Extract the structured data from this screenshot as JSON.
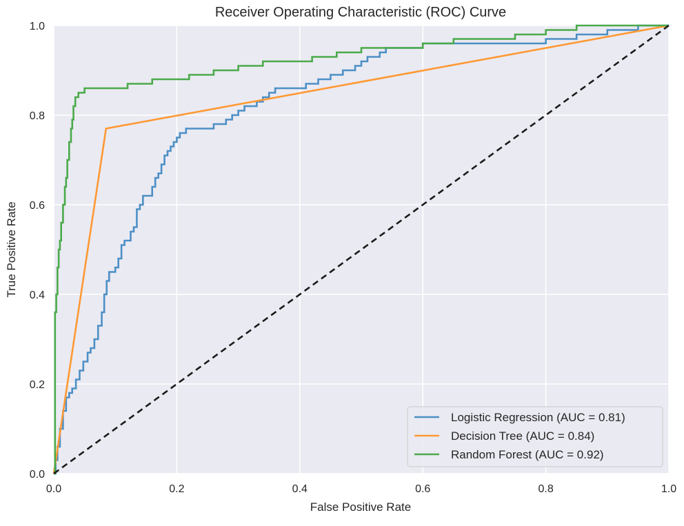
{
  "chart_data": {
    "type": "line",
    "title": "Receiver Operating Characteristic (ROC) Curve",
    "xlabel": "False Positive Rate",
    "ylabel": "True Positive Rate",
    "xlim": [
      0.0,
      1.0
    ],
    "ylim": [
      0.0,
      1.0
    ],
    "xticks": [
      0.0,
      0.2,
      0.4,
      0.6,
      0.8,
      1.0
    ],
    "yticks": [
      0.0,
      0.2,
      0.4,
      0.6,
      0.8,
      1.0
    ],
    "xtick_labels": [
      "0.0",
      "0.2",
      "0.4",
      "0.6",
      "0.8",
      "1.0"
    ],
    "ytick_labels": [
      "0.0",
      "0.2",
      "0.4",
      "0.6",
      "0.8",
      "1.0"
    ],
    "grid": true,
    "legend_position": "lower-right",
    "background_color": "#eaeaf2",
    "grid_color": "#ffffff",
    "series": [
      {
        "name": "Logistic Regression (AUC = 0.81)",
        "color": "#4c8fc5",
        "style": "step",
        "x": [
          0.0,
          0.003,
          0.006,
          0.01,
          0.015,
          0.02,
          0.025,
          0.03,
          0.036,
          0.042,
          0.048,
          0.055,
          0.06,
          0.066,
          0.072,
          0.078,
          0.082,
          0.086,
          0.09,
          0.095,
          0.1,
          0.105,
          0.11,
          0.115,
          0.12,
          0.125,
          0.13,
          0.135,
          0.14,
          0.145,
          0.15,
          0.155,
          0.16,
          0.165,
          0.17,
          0.175,
          0.18,
          0.185,
          0.19,
          0.195,
          0.2,
          0.205,
          0.21,
          0.215,
          0.22,
          0.225,
          0.23,
          0.235,
          0.24,
          0.25,
          0.26,
          0.27,
          0.28,
          0.29,
          0.3,
          0.31,
          0.32,
          0.33,
          0.34,
          0.35,
          0.36,
          0.37,
          0.38,
          0.39,
          0.4,
          0.41,
          0.42,
          0.43,
          0.44,
          0.45,
          0.46,
          0.47,
          0.48,
          0.49,
          0.5,
          0.51,
          0.52,
          0.53,
          0.54,
          0.55,
          0.56,
          0.6,
          0.65,
          0.7,
          0.75,
          0.8,
          0.85,
          0.9,
          0.92,
          0.95,
          1.0
        ],
        "y": [
          0.0,
          0.03,
          0.06,
          0.1,
          0.14,
          0.17,
          0.18,
          0.19,
          0.21,
          0.23,
          0.25,
          0.27,
          0.28,
          0.3,
          0.33,
          0.36,
          0.4,
          0.43,
          0.45,
          0.45,
          0.46,
          0.48,
          0.51,
          0.52,
          0.52,
          0.54,
          0.55,
          0.59,
          0.6,
          0.62,
          0.62,
          0.62,
          0.64,
          0.66,
          0.67,
          0.69,
          0.71,
          0.72,
          0.73,
          0.74,
          0.75,
          0.76,
          0.76,
          0.77,
          0.77,
          0.77,
          0.77,
          0.77,
          0.77,
          0.77,
          0.78,
          0.78,
          0.79,
          0.8,
          0.81,
          0.82,
          0.82,
          0.83,
          0.84,
          0.85,
          0.86,
          0.86,
          0.86,
          0.86,
          0.86,
          0.87,
          0.87,
          0.88,
          0.88,
          0.89,
          0.89,
          0.9,
          0.9,
          0.91,
          0.92,
          0.93,
          0.93,
          0.94,
          0.95,
          0.95,
          0.95,
          0.96,
          0.96,
          0.96,
          0.96,
          0.97,
          0.98,
          0.99,
          0.99,
          1.0,
          1.0
        ]
      },
      {
        "name": "Decision Tree (AUC = 0.84)",
        "color": "#ff9933",
        "style": "line",
        "x": [
          0.0,
          0.085,
          1.0
        ],
        "y": [
          0.0,
          0.77,
          1.0
        ]
      },
      {
        "name": "Random Forest (AUC = 0.92)",
        "color": "#4aaa4a",
        "style": "step",
        "x": [
          0.0,
          0.002,
          0.004,
          0.006,
          0.008,
          0.01,
          0.012,
          0.015,
          0.018,
          0.02,
          0.022,
          0.025,
          0.028,
          0.03,
          0.032,
          0.035,
          0.04,
          0.045,
          0.05,
          0.06,
          0.07,
          0.08,
          0.1,
          0.12,
          0.14,
          0.16,
          0.18,
          0.2,
          0.22,
          0.24,
          0.26,
          0.28,
          0.3,
          0.32,
          0.34,
          0.36,
          0.38,
          0.4,
          0.42,
          0.44,
          0.46,
          0.48,
          0.5,
          0.52,
          0.55,
          0.6,
          0.65,
          0.7,
          0.75,
          0.8,
          0.85,
          0.9,
          1.0
        ],
        "y": [
          0.0,
          0.36,
          0.4,
          0.46,
          0.5,
          0.52,
          0.56,
          0.6,
          0.64,
          0.66,
          0.7,
          0.74,
          0.77,
          0.79,
          0.82,
          0.84,
          0.85,
          0.85,
          0.86,
          0.86,
          0.86,
          0.86,
          0.86,
          0.87,
          0.87,
          0.88,
          0.88,
          0.88,
          0.89,
          0.89,
          0.9,
          0.9,
          0.91,
          0.91,
          0.92,
          0.92,
          0.92,
          0.92,
          0.93,
          0.93,
          0.94,
          0.94,
          0.95,
          0.95,
          0.95,
          0.96,
          0.97,
          0.97,
          0.98,
          0.99,
          1.0,
          1.0,
          1.0
        ]
      }
    ],
    "reference_line": {
      "color": "#1a1a1a",
      "dashed": true,
      "x": [
        0.0,
        1.0
      ],
      "y": [
        0.0,
        1.0
      ]
    }
  }
}
